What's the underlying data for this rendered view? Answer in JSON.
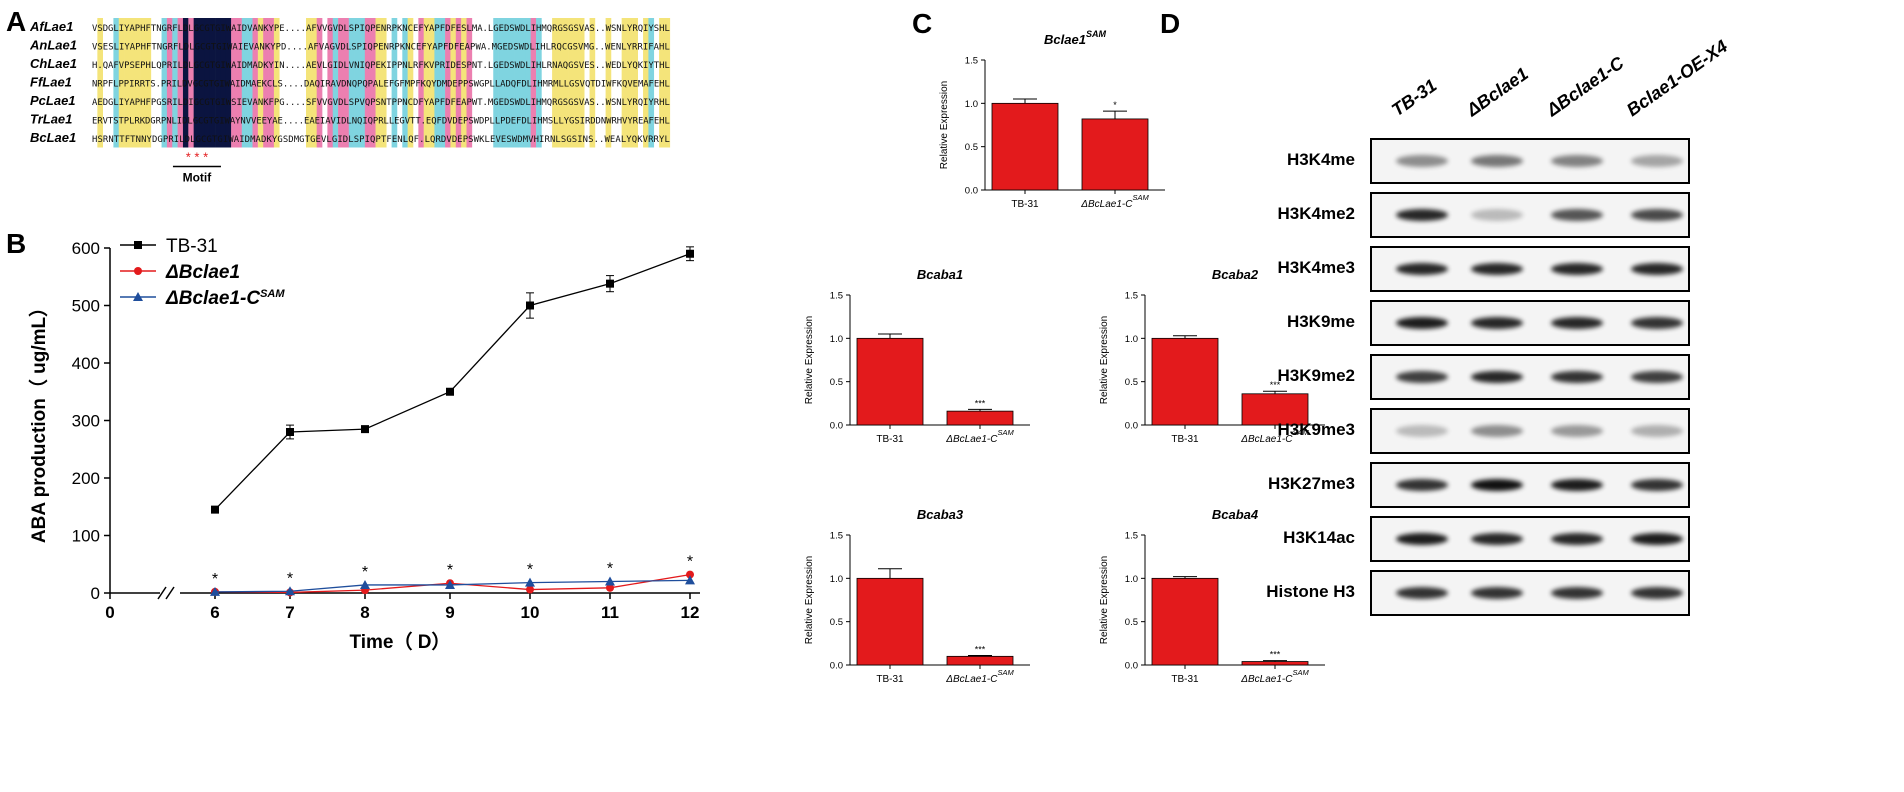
{
  "panels": {
    "a": "A",
    "b": "B",
    "c": "C",
    "d": "D"
  },
  "alignment": {
    "rows": [
      {
        "name": "AfLae1",
        "seq": "VSDGLIYAPHFTNGRFLDLGCGTGIWAIDVANKYPE....AFVVGVDLSPIQPENRPKNCEFYAPFDFESLMA.LGEDSWDLIHMQRGSGSVAS..WSNLYRQIYSHL"
      },
      {
        "name": "AnLae1",
        "seq": "VSESLIYAPHFTNGRFLDLGCGTGIWAIEVANKYPD....AFVAGVDLSPIQPENRPKNCEFYAPFDFEAPWA.MGEDSWDLIHLRQCGSVMG..WENLYRRIFAHL"
      },
      {
        "name": "ChLae1",
        "seq": "H.QAFVPSEPHLQPRILDLGCGTGIWAIDMADKYIN....AEVLGIDLVNIQPEKIPPNLRFKVPRIDESPNT.LGEDSWDLIHLRNAQGSVES..WEDLYQKIYTHL"
      },
      {
        "name": "FfLae1",
        "seq": "NRPFLPPIRRTS.PRILDVGCGTGIWAIDMAEKCLS....DAQIRAVDNQPQPALEFGFMPFKQYDMDEPPSWGPLLADQFDLIHMRMLLGSVQTDIWFKQVEMAFEHL"
      },
      {
        "name": "PcLae1",
        "seq": "AEDGLIYAPHFPGSRILDIGCGTGIWSIEVANKFPG....SFVVGVDLSPVQPSNTPPNCDFYAPFDFEAPWT.MGEDSWDLIHMQRGSGSVAS..WSNLYRQIYRHL"
      },
      {
        "name": "TrLae1",
        "seq": "ERVTSTPLRKDGRPNLIDLGCGTGIWAYNVVEEYAE....EAEIAVIDLNQIQPRLLEGVTT.EQFDVDEPSWDPLLPDEFDLIHMSLLYGSIRDDNWRHVYREAFEHL"
      },
      {
        "name": "BcLae1",
        "seq": "HSRNTTFTNNYDGPRILDLGCGTGIWAIDMADKYGSDMGTGEVLGIDLSPIQPTFENLQF.LQRDVDEPSWKLEVESWDMVHIRNLSGSINS..WEALYQKVRRYL"
      }
    ],
    "motif_label": "Motif",
    "motif_stars": "* * *"
  },
  "chart_data": [
    {
      "type": "line",
      "title": "",
      "xlabel": "Time（ D）",
      "ylabel": "ABA production（ ug/mL）",
      "x_ticks": [
        "0",
        "6",
        "7",
        "8",
        "9",
        "10",
        "11",
        "12"
      ],
      "y_ticks": [
        "0",
        "100",
        "200",
        "300",
        "400",
        "500",
        "600"
      ],
      "ylim": [
        0,
        600
      ],
      "x": [
        6,
        7,
        8,
        9,
        10,
        11,
        12
      ],
      "series": [
        {
          "name": "TB-31",
          "values": [
            145,
            280,
            285,
            350,
            500,
            538,
            590
          ],
          "errors": [
            4,
            12,
            3,
            5,
            22,
            14,
            12
          ],
          "color": "#000000",
          "marker": "square"
        },
        {
          "name": "ΔBclae1",
          "values": [
            2,
            1,
            5,
            17,
            6,
            9,
            32
          ],
          "errors": [
            1,
            1,
            1,
            2,
            1,
            1,
            3
          ],
          "color": "#e31a1c",
          "marker": "circle"
        },
        {
          "name": "ΔBclae1-C",
          "name_sup": "SAM",
          "values": [
            2,
            3,
            14,
            14,
            18,
            20,
            22
          ],
          "errors": [
            1,
            1,
            2,
            2,
            2,
            2,
            2
          ],
          "color": "#1f4e9c",
          "marker": "triangle"
        }
      ],
      "annotations": [
        "*",
        "*",
        "*",
        "*",
        "*",
        "*",
        "*"
      ]
    },
    {
      "type": "bar",
      "title": "Bclae1",
      "title_sup": "SAM",
      "ylabel": "Relative Expression",
      "categories": [
        "TB-31",
        "ΔBcLae1-C"
      ],
      "category_sup": [
        "",
        "SAM"
      ],
      "values": [
        1.0,
        0.82
      ],
      "errors": [
        0.05,
        0.09
      ],
      "significance": [
        "",
        "*"
      ],
      "ylim": [
        0,
        1.5
      ],
      "y_ticks": [
        "0.0",
        "0.5",
        "1.0",
        "1.5"
      ]
    },
    {
      "type": "bar",
      "title": "Bcaba1",
      "title_sup": "",
      "ylabel": "Relative Expression",
      "categories": [
        "TB-31",
        "ΔBcLae1-C"
      ],
      "category_sup": [
        "",
        "SAM"
      ],
      "values": [
        1.0,
        0.16
      ],
      "errors": [
        0.05,
        0.02
      ],
      "significance": [
        "",
        "***"
      ],
      "ylim": [
        0,
        1.5
      ],
      "y_ticks": [
        "0.0",
        "0.5",
        "1.0",
        "1.5"
      ]
    },
    {
      "type": "bar",
      "title": "Bcaba2",
      "title_sup": "",
      "ylabel": "Relative Expression",
      "categories": [
        "TB-31",
        "ΔBcLae1-C"
      ],
      "category_sup": [
        "",
        "SAM"
      ],
      "values": [
        1.0,
        0.36
      ],
      "errors": [
        0.03,
        0.03
      ],
      "significance": [
        "",
        "***"
      ],
      "ylim": [
        0,
        1.5
      ],
      "y_ticks": [
        "0.0",
        "0.5",
        "1.0",
        "1.5"
      ]
    },
    {
      "type": "bar",
      "title": "Bcaba3",
      "title_sup": "",
      "ylabel": "Relative Expression",
      "categories": [
        "TB-31",
        "ΔBcLae1-C"
      ],
      "category_sup": [
        "",
        "SAM"
      ],
      "values": [
        1.0,
        0.1
      ],
      "errors": [
        0.11,
        0.01
      ],
      "significance": [
        "",
        "***"
      ],
      "ylim": [
        0,
        1.5
      ],
      "y_ticks": [
        "0.0",
        "0.5",
        "1.0",
        "1.5"
      ]
    },
    {
      "type": "bar",
      "title": "Bcaba4",
      "title_sup": "",
      "ylabel": "Relative Expression",
      "categories": [
        "TB-31",
        "ΔBcLae1-C"
      ],
      "category_sup": [
        "",
        "SAM"
      ],
      "values": [
        1.0,
        0.04
      ],
      "errors": [
        0.02,
        0.01
      ],
      "significance": [
        "",
        "***"
      ],
      "ylim": [
        0,
        1.5
      ],
      "y_ticks": [
        "0.0",
        "0.5",
        "1.0",
        "1.5"
      ]
    }
  ],
  "western_blot": {
    "lanes": [
      "TB-31",
      "ΔBclae1",
      "ΔBclae1-C",
      "Bclae1-OE-X4"
    ],
    "rows": [
      "H3K4me",
      "H3K4me2",
      "H3K4me3",
      "H3K9me",
      "H3K9me2",
      "H3K9me3",
      "H3K27me3",
      "H3K14ac",
      "Histone H3"
    ],
    "intensities": [
      [
        0.45,
        0.55,
        0.5,
        0.35
      ],
      [
        0.9,
        0.25,
        0.7,
        0.75
      ],
      [
        0.9,
        0.9,
        0.9,
        0.9
      ],
      [
        0.95,
        0.9,
        0.9,
        0.85
      ],
      [
        0.8,
        0.9,
        0.85,
        0.8
      ],
      [
        0.25,
        0.45,
        0.4,
        0.3
      ],
      [
        0.85,
        1.0,
        0.95,
        0.85
      ],
      [
        0.95,
        0.9,
        0.9,
        0.95
      ],
      [
        0.85,
        0.85,
        0.85,
        0.85
      ]
    ]
  },
  "colors": {
    "bar": "#e31a1c",
    "alignment": [
      "#0b1440",
      "#7fd4e0",
      "#f4e47a",
      "#ec7fb0"
    ]
  }
}
